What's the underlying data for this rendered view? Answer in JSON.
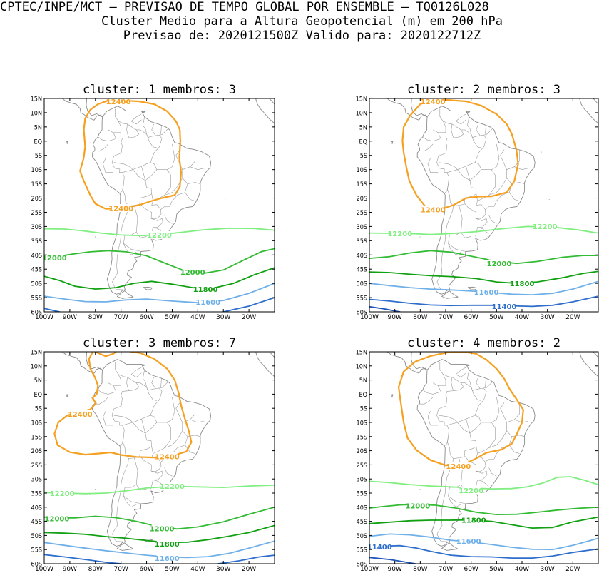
{
  "header": {
    "line1": "CPTEC/INPE/MCT — PREVISAO DE TEMPO GLOBAL POR ENSEMBLE — TQ0126L028",
    "line2": "Cluster Medio para a Altura Geopotencial (m) em 200 hPa",
    "line3": "Previsao de: 2020121500Z   Valido para: 2020122712Z"
  },
  "axes": {
    "lat_labels": [
      "15N",
      "10N",
      "5N",
      "EQ",
      "5S",
      "10S",
      "15S",
      "20S",
      "25S",
      "30S",
      "35S",
      "40S",
      "45S",
      "50S",
      "55S",
      "60S"
    ],
    "lon_labels": [
      "100W",
      "90W",
      "80W",
      "70W",
      "60W",
      "50W",
      "40W",
      "30W",
      "20W"
    ],
    "lat_range": [
      15,
      -60
    ],
    "lon_range": [
      -100,
      -10
    ]
  },
  "colors": {
    "c12400": "#f5a020",
    "c12200": "#80ee80",
    "c12000": "#33bb33",
    "c11800": "#11a011",
    "c11600": "#70b0e8",
    "c11400": "#2d6ecc",
    "coast": "#8a8a8a"
  },
  "panels": [
    {
      "title": "cluster: 1   membros: 3",
      "contour_labels": [
        {
          "text": "12400",
          "lon": -71,
          "lat": 14,
          "level": "c12400"
        },
        {
          "text": "12400",
          "lon": -70,
          "lat": -23.5,
          "level": "c12400"
        },
        {
          "text": "12200",
          "lon": -55,
          "lat": -33,
          "level": "c12200"
        },
        {
          "text": "12000",
          "lon": -96,
          "lat": -41,
          "level": "c12000"
        },
        {
          "text": "12000",
          "lon": -42,
          "lat": -46,
          "level": "c12000"
        },
        {
          "text": "11800",
          "lon": -37,
          "lat": -52,
          "level": "c11800"
        },
        {
          "text": "11600",
          "lon": -36,
          "lat": -56.5,
          "level": "c11600"
        }
      ]
    },
    {
      "title": "cluster: 2   membros: 3",
      "contour_labels": [
        {
          "text": "12400",
          "lon": -75,
          "lat": 14,
          "level": "c12400"
        },
        {
          "text": "12400",
          "lon": -75,
          "lat": -24,
          "level": "c12400"
        },
        {
          "text": "12200",
          "lon": -88,
          "lat": -32.5,
          "level": "c12200"
        },
        {
          "text": "12200",
          "lon": -31,
          "lat": -30,
          "level": "c12200"
        },
        {
          "text": "12000",
          "lon": -49,
          "lat": -43,
          "level": "c12000"
        },
        {
          "text": "11800",
          "lon": -40,
          "lat": -50,
          "level": "c11800"
        },
        {
          "text": "11600",
          "lon": -54,
          "lat": -53,
          "level": "c11600"
        },
        {
          "text": "11400",
          "lon": -47,
          "lat": -58,
          "level": "c11400"
        }
      ]
    },
    {
      "title": "cluster: 3   membros: 7",
      "contour_labels": [
        {
          "text": "12400",
          "lon": -86,
          "lat": -7,
          "level": "c12400"
        },
        {
          "text": "12400",
          "lon": -52,
          "lat": -22,
          "level": "c12400"
        },
        {
          "text": "12200",
          "lon": -50,
          "lat": -32.5,
          "level": "c12200"
        },
        {
          "text": "12200",
          "lon": -93,
          "lat": -35,
          "level": "c12200"
        },
        {
          "text": "12000",
          "lon": -95,
          "lat": -44,
          "level": "c12000"
        },
        {
          "text": "12000",
          "lon": -54,
          "lat": -47.5,
          "level": "c12000"
        },
        {
          "text": "11800",
          "lon": -52,
          "lat": -53,
          "level": "c11800"
        },
        {
          "text": "11600",
          "lon": -52,
          "lat": -58,
          "level": "c11600"
        }
      ]
    },
    {
      "title": "cluster: 4   membros: 2",
      "contour_labels": [
        {
          "text": "12400",
          "lon": -65,
          "lat": -25.5,
          "level": "c12400"
        },
        {
          "text": "12200",
          "lon": -60,
          "lat": -34,
          "level": "c12200"
        },
        {
          "text": "12000",
          "lon": -81,
          "lat": -39.5,
          "level": "c12000"
        },
        {
          "text": "11800",
          "lon": -59,
          "lat": -44.5,
          "level": "c11800"
        },
        {
          "text": "11600",
          "lon": -61,
          "lat": -52,
          "level": "c11600"
        },
        {
          "text": "11400",
          "lon": -96,
          "lat": -54,
          "level": "c11400"
        }
      ]
    }
  ]
}
